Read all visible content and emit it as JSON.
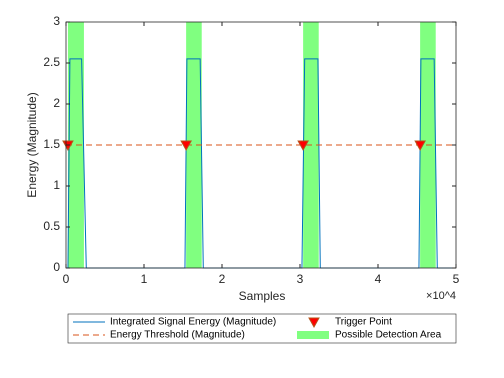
{
  "chart_data": {
    "type": "line",
    "xlabel": "Samples",
    "ylabel": "Energy (Magnitude)",
    "x_exponent": "×10^4",
    "xlim": [
      0,
      50000
    ],
    "ylim": [
      0,
      3
    ],
    "xticks": [
      0,
      {
        "value": 10000,
        "label": "1"
      },
      {
        "value": 20000,
        "label": "2"
      },
      {
        "value": 30000,
        "label": "3"
      },
      {
        "value": 40000,
        "label": "4"
      },
      {
        "value": 50000,
        "label": "5"
      }
    ],
    "yticks": [
      0,
      0.5,
      1,
      1.5,
      2,
      2.5,
      3
    ],
    "series": [
      {
        "name": "Integrated Signal Energy (Magnitude)",
        "color": "#0072bd",
        "x": [
          0,
          250,
          500,
          2000,
          2600,
          15250,
          15500,
          17200,
          17600,
          30250,
          30600,
          32300,
          32600,
          45250,
          45500,
          47200,
          47600,
          50000
        ],
        "values": [
          0,
          0,
          2.55,
          2.55,
          0,
          0,
          2.55,
          2.55,
          0,
          0,
          2.55,
          2.55,
          0,
          0,
          2.55,
          2.55,
          0,
          0
        ]
      },
      {
        "name": "Energy Threshold (Magnitude)",
        "color": "#d95319",
        "dashed": true,
        "x": [
          0,
          50000
        ],
        "values": [
          1.5,
          1.5
        ]
      }
    ],
    "triggers": {
      "name": "Trigger Point",
      "color": "#ff0000",
      "x": [
        250,
        15400,
        30400,
        45400
      ],
      "values": [
        1.5,
        1.5,
        1.5,
        1.5
      ]
    },
    "areas": {
      "name": "Possible Detection Area",
      "color": "#80ff80",
      "starts": [
        250,
        15400,
        30400,
        45400
      ],
      "ends": [
        2300,
        17400,
        32400,
        47400
      ]
    }
  }
}
